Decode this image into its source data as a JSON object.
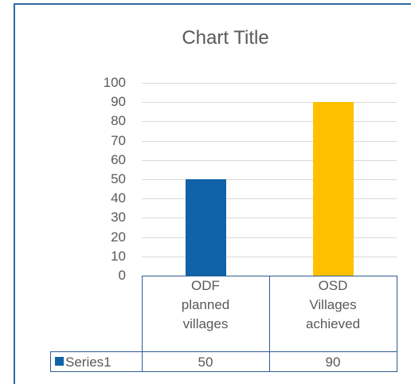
{
  "chart_data": {
    "type": "bar",
    "title": "Chart Title",
    "categories": [
      "ODF planned villages",
      "OSD Villages achieved"
    ],
    "series": [
      {
        "name": "Series1",
        "values": [
          50,
          90
        ],
        "colors": [
          "#0f63a6",
          "#ffc000"
        ]
      }
    ],
    "ylim": [
      0,
      100
    ],
    "yticks": [
      0,
      10,
      20,
      30,
      40,
      50,
      60,
      70,
      80,
      90,
      100
    ],
    "grid": true,
    "data_table": true
  }
}
